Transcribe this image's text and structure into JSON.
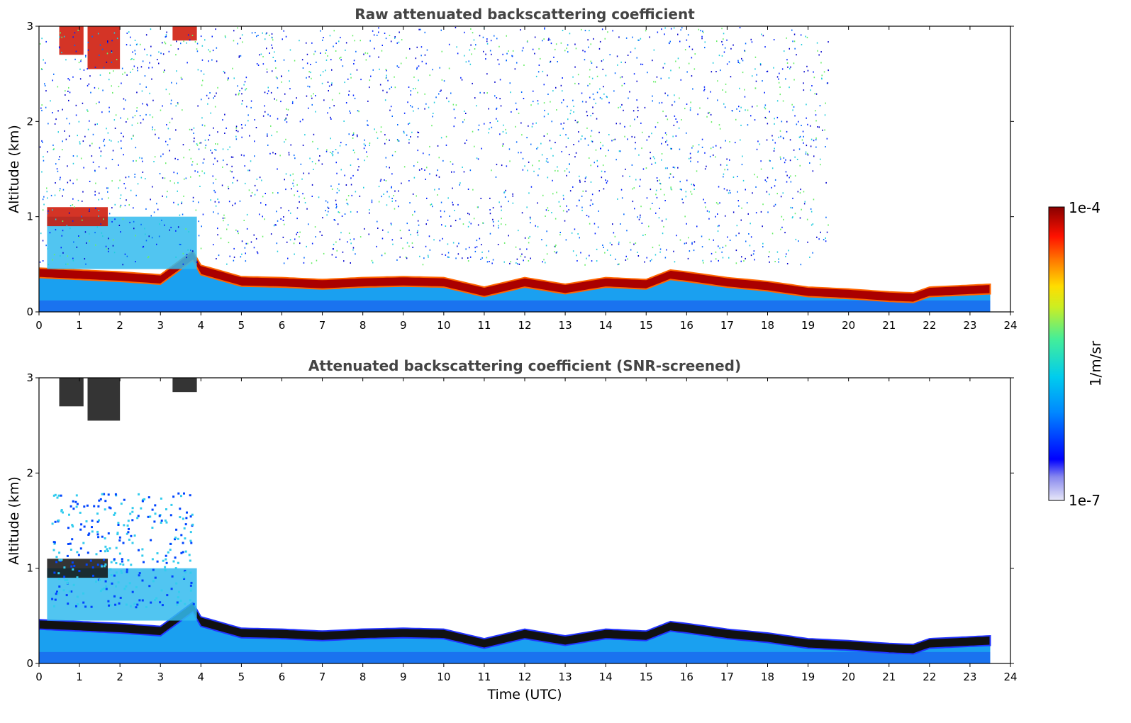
{
  "chart_data": [
    {
      "type": "heatmap",
      "title": "Raw attenuated backscattering coefficient",
      "xlabel": "",
      "ylabel": "Altitude (km)",
      "xlim": [
        0,
        24
      ],
      "ylim": [
        0,
        3
      ],
      "xticks": [
        "0",
        "1",
        "2",
        "3",
        "4",
        "5",
        "6",
        "7",
        "8",
        "9",
        "10",
        "11",
        "12",
        "13",
        "14",
        "15",
        "16",
        "17",
        "18",
        "19",
        "20",
        "21",
        "22",
        "23",
        "24"
      ],
      "yticks": [
        "0",
        "1",
        "2",
        "3"
      ],
      "data_end_hour": 23.5,
      "boundary_layer_top_km": [
        [
          0,
          0.42
        ],
        [
          1,
          0.4
        ],
        [
          2,
          0.38
        ],
        [
          3,
          0.35
        ],
        [
          3.8,
          0.6
        ],
        [
          4,
          0.45
        ],
        [
          5,
          0.33
        ],
        [
          6,
          0.32
        ],
        [
          7,
          0.3
        ],
        [
          8,
          0.32
        ],
        [
          9,
          0.33
        ],
        [
          10,
          0.32
        ],
        [
          11,
          0.22
        ],
        [
          12,
          0.32
        ],
        [
          13,
          0.25
        ],
        [
          14,
          0.32
        ],
        [
          15,
          0.3
        ],
        [
          15.6,
          0.4
        ],
        [
          16,
          0.38
        ],
        [
          17,
          0.32
        ],
        [
          18,
          0.28
        ],
        [
          19,
          0.22
        ],
        [
          20,
          0.2
        ],
        [
          21,
          0.17
        ],
        [
          21.6,
          0.16
        ],
        [
          22,
          0.22
        ],
        [
          23,
          0.24
        ],
        [
          23.5,
          0.25
        ]
      ],
      "cloud_regions_km": [
        {
          "t": [
            0.5,
            1.1
          ],
          "alt": [
            2.7,
            3.0
          ]
        },
        {
          "t": [
            1.2,
            2.0
          ],
          "alt": [
            2.55,
            3.0
          ]
        },
        {
          "t": [
            3.3,
            3.9
          ],
          "alt": [
            2.85,
            3.0
          ]
        },
        {
          "t": [
            0.2,
            1.7
          ],
          "alt": [
            0.9,
            1.1
          ]
        }
      ]
    },
    {
      "type": "heatmap",
      "title": "Attenuated backscattering coefficient (SNR-screened)",
      "xlabel": "Time (UTC)",
      "ylabel": "Altitude (km)",
      "xlim": [
        0,
        24
      ],
      "ylim": [
        0,
        3
      ],
      "xticks": [
        "0",
        "1",
        "2",
        "3",
        "4",
        "5",
        "6",
        "7",
        "8",
        "9",
        "10",
        "11",
        "12",
        "13",
        "14",
        "15",
        "16",
        "17",
        "18",
        "19",
        "20",
        "21",
        "22",
        "23",
        "24"
      ],
      "yticks": [
        "0",
        "1",
        "2",
        "3"
      ],
      "data_end_hour": 23.5
    }
  ],
  "colorbar": {
    "label": "1/m/sr",
    "max_label": "1e-4",
    "min_label": "1e-7",
    "scale": "log",
    "range": [
      1e-07,
      0.0001
    ],
    "colors": [
      "#e8e8f8",
      "#0000ff",
      "#00aaff",
      "#22ddcc",
      "#88ee44",
      "#ffee00",
      "#ff7700",
      "#ff1100",
      "#880000"
    ]
  }
}
